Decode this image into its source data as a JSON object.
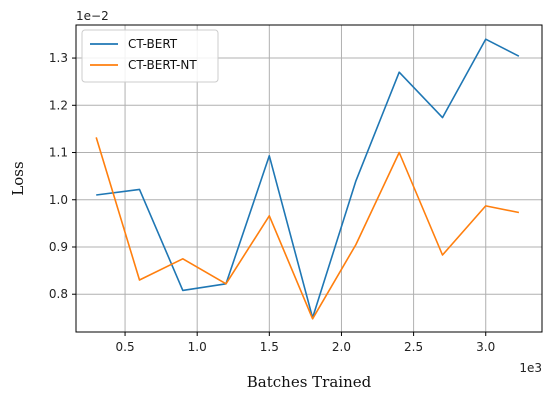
{
  "chart_data": {
    "type": "line",
    "xlabel": "Batches Trained",
    "ylabel": "Loss",
    "x_offset_text": "1e3",
    "y_offset_text": "1e−2",
    "xlim": [
      0.16,
      3.39
    ],
    "ylim": [
      0.72,
      1.37
    ],
    "x_ticks": [
      0.5,
      1.0,
      1.5,
      2.0,
      2.5,
      3.0
    ],
    "x_tick_labels": [
      "0.5",
      "1.0",
      "1.5",
      "2.0",
      "2.5",
      "3.0"
    ],
    "y_ticks": [
      0.8,
      0.9,
      1.0,
      1.1,
      1.2,
      1.3
    ],
    "y_tick_labels": [
      "0.8",
      "0.9",
      "1.0",
      "1.1",
      "1.2",
      "1.3"
    ],
    "grid": true,
    "legend_position": "top-left",
    "x": [
      0.3,
      0.6,
      0.9,
      1.2,
      1.5,
      1.8,
      2.1,
      2.4,
      2.7,
      3.0,
      3.23
    ],
    "series": [
      {
        "name": "CT-BERT",
        "color": "#1f77b4",
        "values": [
          1.01,
          1.022,
          0.808,
          0.822,
          1.093,
          0.75,
          1.04,
          1.27,
          1.174,
          1.34,
          1.304
        ]
      },
      {
        "name": "CT-BERT-NT",
        "color": "#ff7f0e",
        "values": [
          1.132,
          0.83,
          0.875,
          0.822,
          0.966,
          0.748,
          0.905,
          1.1,
          0.883,
          0.987,
          0.973
        ]
      }
    ]
  }
}
